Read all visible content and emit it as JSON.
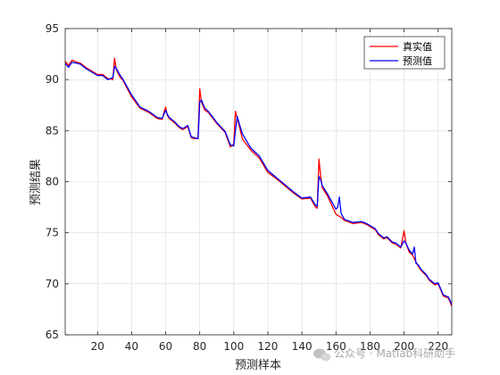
{
  "chart_data": {
    "type": "line",
    "xlabel": "预测样本",
    "ylabel": "预测结果",
    "xlim": [
      1,
      228
    ],
    "ylim": [
      65,
      95
    ],
    "xticks": [
      20,
      40,
      60,
      80,
      100,
      120,
      140,
      160,
      180,
      200,
      220
    ],
    "yticks": [
      65,
      70,
      75,
      80,
      85,
      90,
      95
    ],
    "grid": true,
    "legend_position": "top-right",
    "series": [
      {
        "name": "真实值",
        "color": "#ff0000",
        "x": [
          1,
          3,
          5,
          8,
          10,
          13,
          16,
          20,
          23,
          26,
          29,
          30,
          31,
          33,
          35,
          40,
          45,
          50,
          55,
          58,
          59,
          60,
          61,
          62,
          65,
          68,
          70,
          73,
          75,
          77,
          79,
          80,
          81,
          83,
          85,
          90,
          95,
          98,
          100,
          101,
          102,
          103,
          105,
          110,
          115,
          120,
          125,
          130,
          135,
          140,
          145,
          148,
          149,
          150,
          151,
          152,
          155,
          160,
          163,
          165,
          170,
          175,
          178,
          180,
          183,
          185,
          188,
          190,
          193,
          195,
          198,
          200,
          201,
          203,
          205,
          208,
          210,
          213,
          215,
          218,
          220,
          223,
          226,
          228
        ],
        "values": [
          91.8,
          91.4,
          91.9,
          91.7,
          91.6,
          91.2,
          90.9,
          90.5,
          90.5,
          90.1,
          90.0,
          92.1,
          91.0,
          90.3,
          89.9,
          88.3,
          87.2,
          86.8,
          86.2,
          86.1,
          86.8,
          87.3,
          86.5,
          86.2,
          85.8,
          85.3,
          85.1,
          85.4,
          84.3,
          84.2,
          84.3,
          89.1,
          87.8,
          87.0,
          86.8,
          85.7,
          84.8,
          83.4,
          83.7,
          86.9,
          86.2,
          85.6,
          84.2,
          83.1,
          82.3,
          80.9,
          80.3,
          79.6,
          78.9,
          78.3,
          78.4,
          77.5,
          77.4,
          82.2,
          80.6,
          79.4,
          78.6,
          76.8,
          76.5,
          76.2,
          75.9,
          76.0,
          75.8,
          75.6,
          75.3,
          74.8,
          74.4,
          74.5,
          74.0,
          73.9,
          73.5,
          75.2,
          74.0,
          73.1,
          72.8,
          71.8,
          71.3,
          70.8,
          70.3,
          69.9,
          70.0,
          68.8,
          68.6,
          67.8
        ]
      },
      {
        "name": "预测值",
        "color": "#0000ff",
        "x": [
          1,
          3,
          5,
          8,
          10,
          13,
          16,
          20,
          23,
          26,
          29,
          30,
          31,
          33,
          35,
          40,
          45,
          50,
          55,
          58,
          59,
          60,
          61,
          62,
          65,
          68,
          70,
          73,
          75,
          77,
          79,
          80,
          81,
          83,
          85,
          90,
          95,
          98,
          100,
          101,
          102,
          103,
          105,
          110,
          115,
          120,
          125,
          130,
          135,
          140,
          145,
          148,
          149,
          150,
          151,
          152,
          155,
          160,
          161,
          162,
          163,
          165,
          170,
          175,
          178,
          180,
          183,
          185,
          188,
          190,
          193,
          195,
          198,
          200,
          201,
          203,
          205,
          206,
          207,
          208,
          210,
          213,
          215,
          218,
          220,
          223,
          226,
          228
        ],
        "values": [
          91.6,
          91.2,
          91.7,
          91.6,
          91.5,
          91.1,
          90.8,
          90.4,
          90.4,
          90.0,
          90.2,
          91.3,
          91.1,
          90.5,
          90.0,
          88.5,
          87.3,
          86.9,
          86.3,
          86.2,
          86.6,
          87.0,
          86.6,
          86.3,
          85.9,
          85.4,
          85.2,
          85.5,
          84.4,
          84.3,
          84.2,
          87.8,
          88.0,
          87.2,
          86.9,
          85.8,
          84.9,
          83.6,
          83.5,
          85.0,
          86.4,
          85.8,
          84.7,
          83.3,
          82.5,
          81.1,
          80.4,
          79.7,
          79.0,
          78.4,
          78.5,
          77.7,
          77.6,
          80.5,
          80.2,
          79.6,
          78.8,
          77.3,
          77.5,
          78.5,
          76.9,
          76.3,
          76.0,
          76.1,
          75.9,
          75.7,
          75.4,
          74.9,
          74.5,
          74.6,
          74.1,
          74.0,
          73.6,
          74.2,
          74.0,
          73.3,
          72.9,
          73.6,
          72.0,
          71.9,
          71.4,
          70.9,
          70.4,
          70.0,
          70.1,
          68.9,
          68.7,
          68.0
        ]
      }
    ]
  },
  "watermark": {
    "icon": "wechat-icon",
    "text": "公众号 · Matlab科研助手"
  }
}
